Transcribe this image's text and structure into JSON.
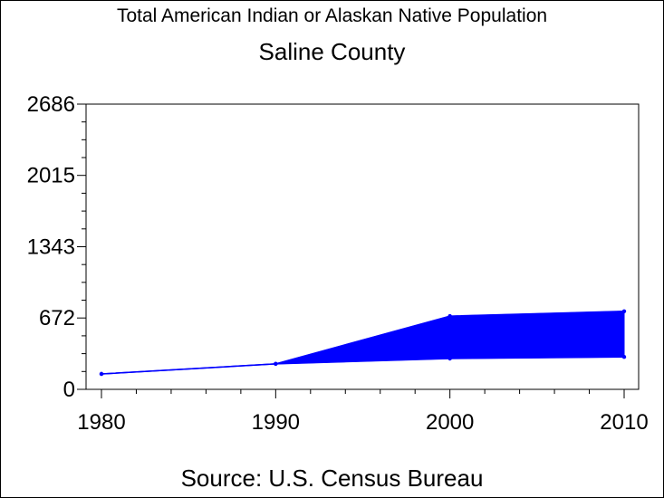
{
  "chart_data": {
    "type": "area",
    "title": "Total American Indian or Alaskan Native Population",
    "subtitle": "Saline County",
    "source": "Source: U.S. Census Bureau",
    "x": [
      1980,
      1990,
      2000,
      2010
    ],
    "series": [
      {
        "values": [
          145,
          240,
          690,
          735
        ]
      },
      {
        "values": [
          145,
          240,
          290,
          305
        ]
      }
    ],
    "fill_color": "#0000ff",
    "line_color": "#0000ff",
    "xlim": [
      1980,
      2010
    ],
    "ylim": [
      0,
      2686
    ],
    "x_ticks": [
      "1980",
      "1990",
      "2000",
      "2010"
    ],
    "y_ticks": [
      "0",
      "672",
      "1343",
      "2015",
      "2686"
    ],
    "y_tick_values": [
      0,
      672,
      1343,
      2015,
      2686
    ],
    "grid": false
  }
}
